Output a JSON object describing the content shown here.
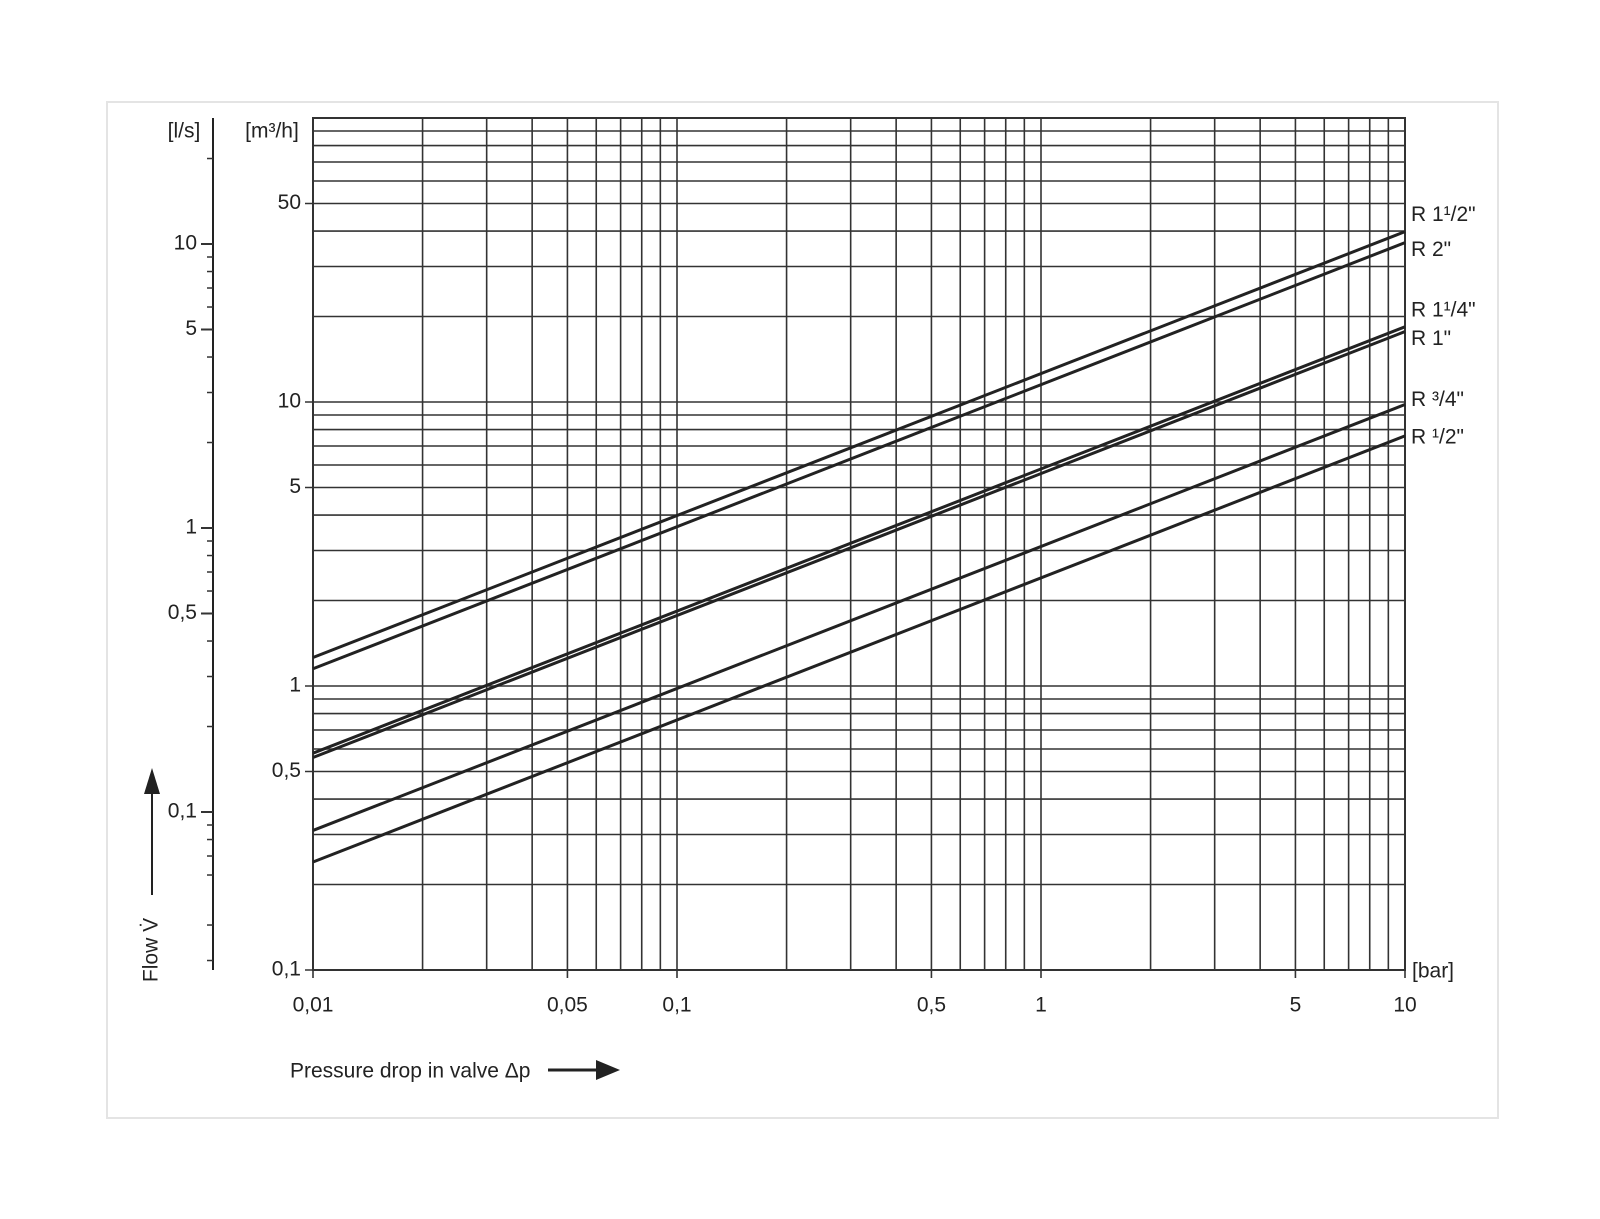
{
  "chart_data": {
    "type": "line",
    "xlabel": "Pressure drop  in valve Δp",
    "ylabel": "Flow V̇",
    "x_unit": "[bar]",
    "y_unit": "[m³/h]",
    "y2_unit": "[l/s]",
    "log_x": true,
    "log_y": true,
    "grid": true,
    "xlim": [
      0.01,
      10
    ],
    "xticks": [
      {
        "value": 0.01,
        "label": "0,01"
      },
      {
        "value": 0.05,
        "label": "0,05"
      },
      {
        "value": 0.1,
        "label": "0,1"
      },
      {
        "value": 0.5,
        "label": "0,5"
      },
      1,
      5,
      10
    ],
    "x_minor_ticks": [
      0.02,
      0.03,
      0.04,
      0.06,
      0.07,
      0.08,
      0.09,
      0.2,
      0.3,
      0.4,
      0.6,
      0.7,
      0.8,
      0.9,
      2,
      3,
      4,
      6,
      7,
      8,
      9
    ],
    "ylim": [
      0.1,
      100
    ],
    "yticks": [
      {
        "value": 0.1,
        "label": "0,1"
      },
      {
        "value": 0.5,
        "label": "0,5"
      },
      1,
      5,
      10,
      50
    ],
    "y_minor_ticks": [
      0.2,
      0.3,
      0.4,
      0.6,
      0.7,
      0.8,
      0.9,
      2,
      3,
      4,
      6,
      7,
      8,
      9,
      20,
      30,
      40,
      60,
      70,
      80,
      90
    ],
    "y2lim": [
      0.027778,
      27.778
    ],
    "y2ticks": [
      {
        "value": 0.1,
        "label": "0,1"
      },
      {
        "value": 0.5,
        "label": "0,5"
      },
      1,
      5,
      10
    ],
    "y2_minor_ticks": [
      0.03,
      0.04,
      0.06,
      0.07,
      0.08,
      0.09,
      0.2,
      0.3,
      0.4,
      0.6,
      0.7,
      0.8,
      0.9,
      2,
      3,
      4,
      6,
      7,
      8,
      9,
      20
    ],
    "x": [
      0.01,
      10
    ],
    "series": [
      {
        "name": "R 1¹/2\"",
        "color": "#222222",
        "values": [
          1.26,
          39.8
        ]
      },
      {
        "name": "R 2\"",
        "color": "#222222",
        "values": [
          1.15,
          36.4
        ]
      },
      {
        "name": "R 1¹/4\"",
        "color": "#222222",
        "values": [
          0.58,
          18.4
        ]
      },
      {
        "name": "R 1\"",
        "color": "#222222",
        "values": [
          0.56,
          17.7
        ]
      },
      {
        "name": "R ³/4\"",
        "color": "#222222",
        "values": [
          0.31,
          9.8
        ]
      },
      {
        "name": "R ¹/2\"",
        "color": "#222222",
        "values": [
          0.24,
          7.6
        ]
      }
    ]
  }
}
